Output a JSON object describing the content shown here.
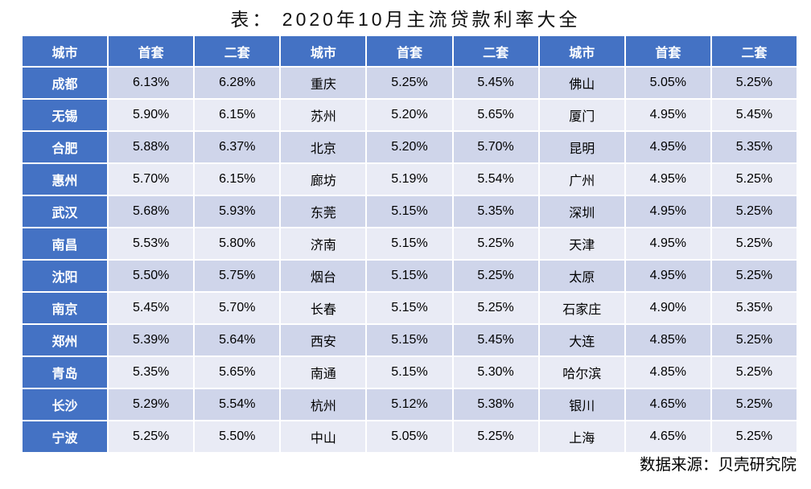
{
  "colors": {
    "header_bg": "#4472C4",
    "header_text": "#FFFFFF",
    "band_dark": "#CFD5EA",
    "band_light": "#E9EBF5",
    "cell_text": "#000000"
  },
  "chart_data": {
    "type": "table",
    "title": "表： 2020年10月主流贷款利率大全",
    "columns": [
      "城市",
      "首套",
      "二套",
      "城市",
      "首套",
      "二套",
      "城市",
      "首套",
      "二套"
    ],
    "rows": [
      [
        "成都",
        "6.13%",
        "6.28%",
        "重庆",
        "5.25%",
        "5.45%",
        "佛山",
        "5.05%",
        "5.25%"
      ],
      [
        "无锡",
        "5.90%",
        "6.15%",
        "苏州",
        "5.20%",
        "5.65%",
        "厦门",
        "4.95%",
        "5.45%"
      ],
      [
        "合肥",
        "5.88%",
        "6.37%",
        "北京",
        "5.20%",
        "5.70%",
        "昆明",
        "4.95%",
        "5.35%"
      ],
      [
        "惠州",
        "5.70%",
        "6.15%",
        "廊坊",
        "5.19%",
        "5.54%",
        "广州",
        "4.95%",
        "5.25%"
      ],
      [
        "武汉",
        "5.68%",
        "5.93%",
        "东莞",
        "5.15%",
        "5.35%",
        "深圳",
        "4.95%",
        "5.25%"
      ],
      [
        "南昌",
        "5.53%",
        "5.80%",
        "济南",
        "5.15%",
        "5.25%",
        "天津",
        "4.95%",
        "5.25%"
      ],
      [
        "沈阳",
        "5.50%",
        "5.75%",
        "烟台",
        "5.15%",
        "5.25%",
        "太原",
        "4.95%",
        "5.25%"
      ],
      [
        "南京",
        "5.45%",
        "5.70%",
        "长春",
        "5.15%",
        "5.25%",
        "石家庄",
        "4.90%",
        "5.35%"
      ],
      [
        "郑州",
        "5.39%",
        "5.64%",
        "西安",
        "5.15%",
        "5.45%",
        "大连",
        "4.85%",
        "5.25%"
      ],
      [
        "青岛",
        "5.35%",
        "5.65%",
        "南通",
        "5.15%",
        "5.30%",
        "哈尔滨",
        "4.85%",
        "5.25%"
      ],
      [
        "长沙",
        "5.29%",
        "5.54%",
        "杭州",
        "5.12%",
        "5.38%",
        "银川",
        "4.65%",
        "5.25%"
      ],
      [
        "宁波",
        "5.25%",
        "5.50%",
        "中山",
        "5.05%",
        "5.25%",
        "上海",
        "4.65%",
        "5.25%"
      ]
    ],
    "source": "数据来源：贝壳研究院"
  }
}
